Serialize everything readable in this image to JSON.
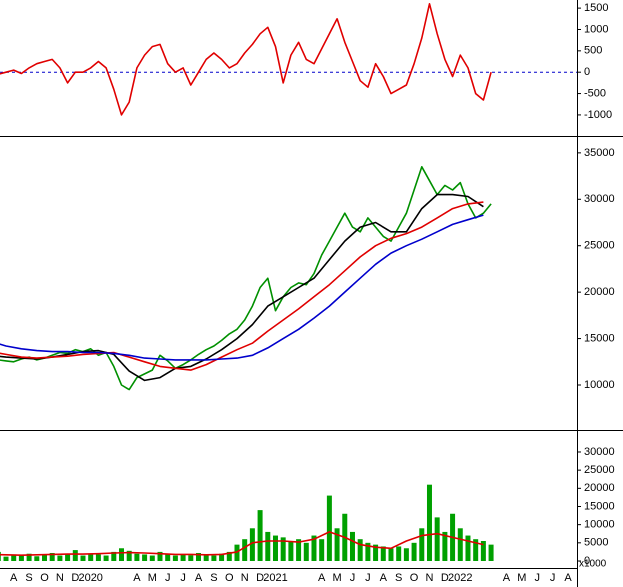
{
  "chart_data": [
    {
      "type": "line",
      "xlim": [
        -0.39,
        37.08
      ],
      "ylim": [
        -1470,
        1690
      ],
      "yticks": [
        1500,
        1000,
        500,
        0,
        -500,
        -1000
      ],
      "reference_line": 0,
      "x": [
        -1,
        -0.5,
        0,
        0.5,
        1,
        1.5,
        2,
        2.5,
        3,
        3.5,
        4,
        4.5,
        5,
        5.5,
        6,
        6.5,
        7,
        7.5,
        8,
        8.5,
        9,
        9.5,
        10,
        10.5,
        11,
        11.5,
        12,
        12.5,
        13,
        13.5,
        14,
        14.5,
        15,
        15.5,
        16,
        16.5,
        17,
        17.5,
        18,
        18.5,
        19,
        19.5,
        20,
        20.5,
        21,
        21.5,
        22,
        22.5,
        23,
        23.5,
        24,
        24.5,
        25,
        25.5,
        26,
        26.5,
        27,
        27.5,
        28,
        28.5,
        29,
        29.5,
        30,
        30.5,
        31,
        31.5
      ],
      "series": [
        {
          "type": "line",
          "color": "#e00000",
          "values": [
            0,
            -50,
            0,
            50,
            -30,
            100,
            200,
            250,
            300,
            100,
            -250,
            0,
            0,
            100,
            250,
            100,
            -400,
            -1000,
            -700,
            100,
            400,
            600,
            650,
            200,
            0,
            100,
            -300,
            0,
            300,
            450,
            300,
            100,
            200,
            450,
            650,
            900,
            1050,
            600,
            -250,
            400,
            700,
            300,
            200,
            550,
            900,
            1250,
            700,
            250,
            -200,
            -350,
            200,
            -100,
            -500,
            -400,
            -300,
            200,
            800,
            1600,
            900,
            300,
            -100,
            400,
            100,
            -500,
            -650,
            0
          ]
        }
      ]
    },
    {
      "type": "line",
      "xlim": [
        -0.39,
        37.08
      ],
      "ylim": [
        5370,
        36600
      ],
      "yticks": [
        35000,
        30000,
        25000,
        20000,
        15000,
        10000
      ],
      "x": [
        -1,
        -0.5,
        0,
        0.5,
        1,
        1.5,
        2,
        2.5,
        3,
        3.5,
        4,
        4.5,
        5,
        5.5,
        6,
        6.5,
        7,
        7.5,
        8,
        8.5,
        9,
        9.5,
        10,
        10.5,
        11,
        11.5,
        12,
        12.5,
        13,
        13.5,
        14,
        14.5,
        15,
        15.5,
        16,
        16.5,
        17,
        17.5,
        18,
        18.5,
        19,
        19.5,
        20,
        20.5,
        21,
        21.5,
        22,
        22.5,
        23,
        23.5,
        24,
        24.5,
        25,
        25.5,
        26,
        26.5,
        27,
        27.5,
        28,
        28.5,
        29,
        29.5,
        30,
        30.5,
        31,
        31.5
      ],
      "series": [
        {
          "type": "line",
          "color": "#009000",
          "values": [
            12900,
            12700,
            12600,
            12500,
            12800,
            13000,
            12700,
            12900,
            13200,
            13500,
            13400,
            13800,
            13600,
            13900,
            13200,
            13500,
            12000,
            10000,
            9500,
            10800,
            11200,
            11600,
            13200,
            12600,
            11800,
            12200,
            12700,
            13300,
            13800,
            14200,
            14800,
            15500,
            16000,
            17000,
            18500,
            20500,
            21500,
            18000,
            19500,
            20500,
            21000,
            20800,
            22000,
            24000,
            25500,
            27000,
            28500,
            27000,
            26500,
            28000,
            27000,
            26000,
            25500,
            27000,
            28500,
            31000,
            33500,
            32000,
            30500,
            31500,
            31000,
            31800,
            29500,
            28000,
            28500,
            29500
          ]
        },
        {
          "type": "line",
          "color": "#000000",
          "x": [
            -1,
            0,
            1,
            2,
            3,
            4,
            5,
            6,
            7,
            8,
            9,
            10,
            11,
            12,
            13,
            14,
            15,
            16,
            17,
            18,
            19,
            20,
            21,
            22,
            23,
            24,
            25,
            26,
            27,
            28,
            29,
            30,
            31
          ],
          "values": [
            13200,
            13000,
            12900,
            12800,
            13000,
            13300,
            13600,
            13700,
            13300,
            11500,
            10500,
            10800,
            11800,
            12000,
            12800,
            13800,
            15000,
            16500,
            18500,
            19500,
            20500,
            21500,
            23500,
            25500,
            27000,
            27500,
            26500,
            26500,
            29000,
            30500,
            30500,
            30300,
            29200
          ]
        },
        {
          "type": "line",
          "color": "#e00000",
          "x": [
            -1,
            0,
            1,
            2,
            3,
            4,
            5,
            6,
            7,
            8,
            9,
            10,
            11,
            12,
            13,
            14,
            15,
            16,
            17,
            18,
            19,
            20,
            21,
            22,
            23,
            24,
            25,
            26,
            27,
            28,
            29,
            30,
            31
          ],
          "values": [
            13600,
            13300,
            13000,
            12900,
            13000,
            13100,
            13300,
            13400,
            13500,
            13000,
            12500,
            12000,
            11800,
            11600,
            12200,
            13000,
            13800,
            14500,
            15800,
            17000,
            18200,
            19500,
            20800,
            22300,
            23800,
            25000,
            25800,
            26300,
            27000,
            28000,
            29000,
            29500,
            29700
          ]
        },
        {
          "type": "line",
          "color": "#0000cc",
          "x": [
            -1,
            0,
            1,
            2,
            3,
            4,
            5,
            6,
            7,
            8,
            9,
            10,
            11,
            12,
            13,
            14,
            15,
            16,
            17,
            18,
            19,
            20,
            21,
            22,
            23,
            24,
            25,
            26,
            27,
            28,
            29,
            30,
            31
          ],
          "values": [
            14700,
            14200,
            13900,
            13700,
            13600,
            13600,
            13500,
            13500,
            13400,
            13200,
            12900,
            12800,
            12700,
            12700,
            12700,
            12800,
            12900,
            13200,
            14000,
            15000,
            16000,
            17200,
            18500,
            20000,
            21500,
            23000,
            24200,
            25000,
            25700,
            26500,
            27300,
            27800,
            28300
          ]
        }
      ]
    },
    {
      "type": "bar",
      "xlim": [
        -0.39,
        37.08
      ],
      "ylim": [
        -1930,
        35500
      ],
      "yticks": [
        30000,
        25000,
        20000,
        15000,
        10000,
        5000,
        0
      ],
      "unit_label": "x1000",
      "categories": [
        "A",
        "S",
        "O",
        "N",
        "D",
        "2020",
        null,
        null,
        "A",
        "M",
        "J",
        "J",
        "A",
        "S",
        "O",
        "N",
        "D",
        "2021",
        null,
        null,
        "A",
        "M",
        "J",
        "J",
        "A",
        "S",
        "O",
        "N",
        "D",
        "2022",
        null,
        null,
        "A",
        "M",
        "J",
        "J",
        "A"
      ],
      "x": [
        -1,
        -0.5,
        0,
        0.5,
        1,
        1.5,
        2,
        2.5,
        3,
        3.5,
        4,
        4.5,
        5,
        5.5,
        6,
        6.5,
        7,
        7.5,
        8,
        8.5,
        9,
        9.5,
        10,
        10.5,
        11,
        11.5,
        12,
        12.5,
        13,
        13.5,
        14,
        14.5,
        15,
        15.5,
        16,
        16.5,
        17,
        17.5,
        18,
        18.5,
        19,
        19.5,
        20,
        20.5,
        21,
        21.5,
        22,
        22.5,
        23,
        23.5,
        24,
        24.5,
        25,
        25.5,
        26,
        26.5,
        27,
        27.5,
        28,
        28.5,
        29,
        29.5,
        30,
        30.5,
        31,
        31.5
      ],
      "series": [
        {
          "type": "bar",
          "color": "#00a000",
          "values": [
            1500,
            2500,
            1200,
            1800,
            1500,
            2000,
            1300,
            1700,
            2200,
            1500,
            1800,
            3000,
            1500,
            2000,
            1800,
            1500,
            2500,
            3500,
            2800,
            2000,
            1800,
            1500,
            2500,
            2000,
            1500,
            1800,
            1600,
            2200,
            1800,
            1500,
            2000,
            2500,
            4500,
            6000,
            9000,
            14000,
            8000,
            7000,
            6500,
            5500,
            6000,
            5000,
            7000,
            6000,
            18000,
            9000,
            13000,
            8000,
            6000,
            5000,
            4500,
            4000,
            3500,
            4000,
            3500,
            5000,
            9000,
            21000,
            12000,
            8000,
            13000,
            9000,
            7000,
            6000,
            5500,
            4500
          ]
        },
        {
          "type": "line",
          "color": "#e00000",
          "x": [
            -1,
            0,
            1,
            2,
            3,
            4,
            5,
            6,
            7,
            8,
            9,
            10,
            11,
            12,
            13,
            14,
            15,
            16,
            17,
            18,
            19,
            20,
            21,
            22,
            23,
            24,
            25,
            26,
            27,
            28,
            29,
            30,
            31
          ],
          "values": [
            1800,
            1700,
            1600,
            1700,
            1800,
            1900,
            1900,
            2000,
            2200,
            2300,
            2200,
            2000,
            1800,
            1800,
            1700,
            1800,
            2500,
            5000,
            5500,
            5500,
            5200,
            6000,
            8000,
            6500,
            4500,
            3800,
            3500,
            5500,
            7000,
            7500,
            6500,
            5500,
            4500
          ]
        }
      ]
    }
  ]
}
